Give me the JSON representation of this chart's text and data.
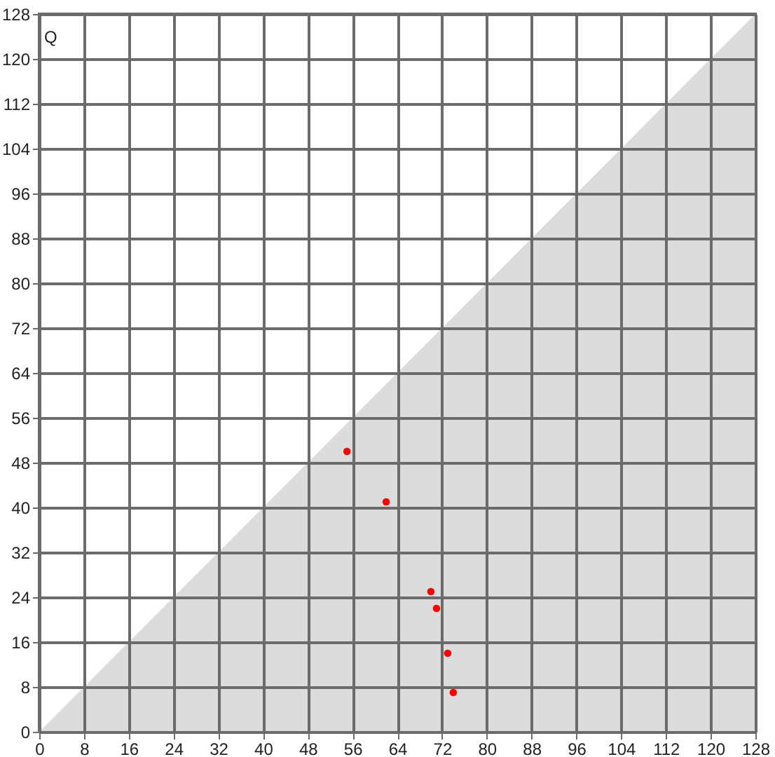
{
  "chart_data": {
    "type": "scatter",
    "ylabel": "Q",
    "xlim": [
      0,
      128
    ],
    "ylim": [
      0,
      128
    ],
    "xticks": [
      0,
      8,
      16,
      24,
      32,
      40,
      48,
      56,
      64,
      72,
      80,
      88,
      96,
      104,
      112,
      120,
      128
    ],
    "yticks": [
      0,
      8,
      16,
      24,
      32,
      40,
      48,
      56,
      64,
      72,
      80,
      88,
      96,
      104,
      112,
      120,
      128
    ],
    "grid": true,
    "series": [
      {
        "type": "area",
        "color": "#dcdcdc",
        "x": [
          0,
          128
        ],
        "values": [
          0,
          128
        ]
      },
      {
        "color": "#ff0000",
        "marker": "circle",
        "x": [
          55,
          62,
          70,
          71,
          73,
          74
        ],
        "values": [
          50,
          41,
          25,
          22,
          14,
          7
        ]
      }
    ]
  }
}
